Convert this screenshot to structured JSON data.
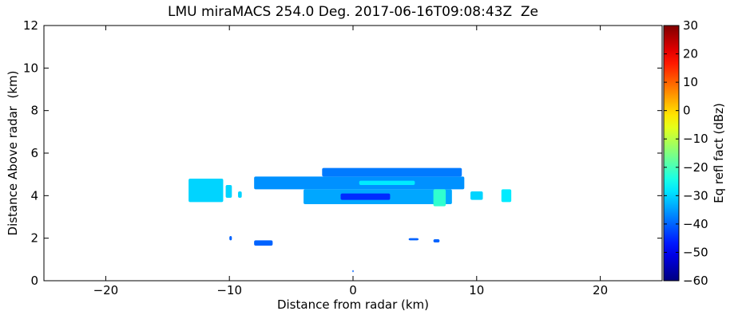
{
  "chart_data": {
    "type": "rhi",
    "title": "LMU miraMACS 254.0 Deg. 2017-06-16T09:08:43Z  Ze",
    "x_label": "Distance from radar (km)",
    "y_label": "Distance Above radar  (km)",
    "colorbar_label": "Eq refl fact (dBz)",
    "colormap": "jet",
    "xlim": [
      -25,
      25
    ],
    "ylim": [
      0,
      12
    ],
    "clim": [
      -60,
      30
    ],
    "xticks": [
      {
        "value": -20,
        "label": "−20"
      },
      {
        "value": -10,
        "label": "−10"
      },
      0,
      10,
      20
    ],
    "yticks": [
      0,
      2,
      4,
      6,
      8,
      10,
      12
    ],
    "cticks": [
      {
        "value": -60,
        "label": "−60"
      },
      {
        "value": -50,
        "label": "−50"
      },
      {
        "value": -40,
        "label": "−40"
      },
      {
        "value": -30,
        "label": "−30"
      },
      {
        "value": -20,
        "label": "−20"
      },
      {
        "value": -10,
        "label": "−10"
      },
      0,
      10,
      20,
      30
    ],
    "cells": [
      {
        "x": [
          -13.3,
          -10.5
        ],
        "y": [
          3.7,
          4.8
        ],
        "value": -30
      },
      {
        "x": [
          -10.3,
          -9.8
        ],
        "y": [
          3.9,
          4.5
        ],
        "value": -30
      },
      {
        "x": [
          -9.3,
          -9.0
        ],
        "y": [
          3.9,
          4.2
        ],
        "value": -30
      },
      {
        "x": [
          -8.0,
          9.0
        ],
        "y": [
          4.3,
          4.9
        ],
        "value": -36
      },
      {
        "x": [
          -2.5,
          8.8
        ],
        "y": [
          4.9,
          5.3
        ],
        "value": -38
      },
      {
        "x": [
          -4.0,
          8.0
        ],
        "y": [
          3.6,
          4.3
        ],
        "value": -34
      },
      {
        "x": [
          -1.0,
          3.0
        ],
        "y": [
          3.8,
          4.1
        ],
        "value": -45
      },
      {
        "x": [
          0.5,
          5.0
        ],
        "y": [
          4.5,
          4.7
        ],
        "value": -28
      },
      {
        "x": [
          6.5,
          7.5
        ],
        "y": [
          3.5,
          4.3
        ],
        "value": -22
      },
      {
        "x": [
          9.5,
          10.5
        ],
        "y": [
          3.8,
          4.2
        ],
        "value": -30
      },
      {
        "x": [
          12.0,
          12.8
        ],
        "y": [
          3.7,
          4.3
        ],
        "value": -28
      },
      {
        "x": [
          -10.0,
          -9.8
        ],
        "y": [
          1.9,
          2.1
        ],
        "value": -40
      },
      {
        "x": [
          -8.0,
          -6.5
        ],
        "y": [
          1.65,
          1.9
        ],
        "value": -40
      },
      {
        "x": [
          4.5,
          5.3
        ],
        "y": [
          1.9,
          2.0
        ],
        "value": -40
      },
      {
        "x": [
          6.5,
          7.0
        ],
        "y": [
          1.8,
          1.95
        ],
        "value": -40
      },
      {
        "x": [
          -0.05,
          0.05
        ],
        "y": [
          0.4,
          0.5
        ],
        "value": -40
      }
    ]
  }
}
